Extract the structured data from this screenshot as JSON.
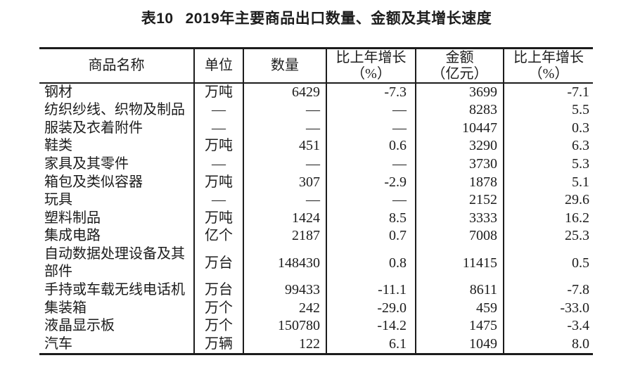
{
  "title": {
    "prefix": "表10",
    "text": "2019年主要商品出口数量、金额及其增长速度"
  },
  "table": {
    "headers": [
      {
        "line1": "商品名称",
        "line2": ""
      },
      {
        "line1": "单位",
        "line2": ""
      },
      {
        "line1": "数量",
        "line2": ""
      },
      {
        "line1": "比上年增长",
        "line2": "（%）"
      },
      {
        "line1": "金额",
        "line2": "（亿元）"
      },
      {
        "line1": "比上年增长",
        "line2": "（%）"
      }
    ],
    "rows": [
      {
        "name": "钢材",
        "unit": "万吨",
        "quantity": "6429",
        "quantity_growth": "-7.3",
        "value": "3699",
        "value_growth": "-7.1"
      },
      {
        "name": "纺织纱线、织物及制品",
        "unit": "—",
        "quantity": "—",
        "quantity_growth": "—",
        "value": "8283",
        "value_growth": "5.5"
      },
      {
        "name": "服装及衣着附件",
        "unit": "—",
        "quantity": "—",
        "quantity_growth": "—",
        "value": "10447",
        "value_growth": "0.3"
      },
      {
        "name": "鞋类",
        "unit": "万吨",
        "quantity": "451",
        "quantity_growth": "0.6",
        "value": "3290",
        "value_growth": "6.3"
      },
      {
        "name": "家具及其零件",
        "unit": "—",
        "quantity": "—",
        "quantity_growth": "—",
        "value": "3730",
        "value_growth": "5.3"
      },
      {
        "name": "箱包及类似容器",
        "unit": "万吨",
        "quantity": "307",
        "quantity_growth": "-2.9",
        "value": "1878",
        "value_growth": "5.1"
      },
      {
        "name": "玩具",
        "unit": "—",
        "quantity": "—",
        "quantity_growth": "—",
        "value": "2152",
        "value_growth": "29.6"
      },
      {
        "name": "塑料制品",
        "unit": "万吨",
        "quantity": "1424",
        "quantity_growth": "8.5",
        "value": "3333",
        "value_growth": "16.2"
      },
      {
        "name": "集成电路",
        "unit": "亿个",
        "quantity": "2187",
        "quantity_growth": "0.7",
        "value": "7008",
        "value_growth": "25.3"
      },
      {
        "name": "自动数据处理设备及其部件",
        "unit": "万台",
        "quantity": "148430",
        "quantity_growth": "0.8",
        "value": "11415",
        "value_growth": "0.5"
      },
      {
        "name": "手持或车载无线电话机",
        "unit": "万台",
        "quantity": "99433",
        "quantity_growth": "-11.1",
        "value": "8611",
        "value_growth": "-7.8"
      },
      {
        "name": "集装箱",
        "unit": "万个",
        "quantity": "242",
        "quantity_growth": "-29.0",
        "value": "459",
        "value_growth": "-33.0"
      },
      {
        "name": "液晶显示板",
        "unit": "万个",
        "quantity": "150780",
        "quantity_growth": "-14.2",
        "value": "1475",
        "value_growth": "-3.4"
      },
      {
        "name": "汽车",
        "unit": "万辆",
        "quantity": "122",
        "quantity_growth": "6.1",
        "value": "1049",
        "value_growth": "8.0"
      }
    ]
  }
}
